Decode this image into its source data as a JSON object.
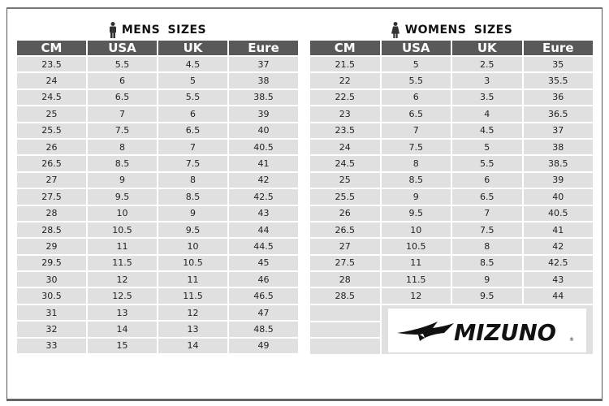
{
  "mens": {
    "title": "MENS  SIZES",
    "headers": [
      "CM",
      "USA",
      "UK",
      "Eure"
    ],
    "rows": [
      [
        "23.5",
        "5.5",
        "4.5",
        "37"
      ],
      [
        "24",
        "6",
        "5",
        "38"
      ],
      [
        "24.5",
        "6.5",
        "5.5",
        "38.5"
      ],
      [
        "25",
        "7",
        "6",
        "39"
      ],
      [
        "25.5",
        "7.5",
        "6.5",
        "40"
      ],
      [
        "26",
        "8",
        "7",
        "40.5"
      ],
      [
        "26.5",
        "8.5",
        "7.5",
        "41"
      ],
      [
        "27",
        "9",
        "8",
        "42"
      ],
      [
        "27.5",
        "9.5",
        "8.5",
        "42.5"
      ],
      [
        "28",
        "10",
        "9",
        "43"
      ],
      [
        "28.5",
        "10.5",
        "9.5",
        "44"
      ],
      [
        "29",
        "11",
        "10",
        "44.5"
      ],
      [
        "29.5",
        "11.5",
        "10.5",
        "45"
      ],
      [
        "30",
        "12",
        "11",
        "46"
      ],
      [
        "30.5",
        "12.5",
        "11.5",
        "46.5"
      ],
      [
        "31",
        "13",
        "12",
        "47"
      ],
      [
        "32",
        "14",
        "13",
        "48.5"
      ],
      [
        "33",
        "15",
        "14",
        "49"
      ]
    ]
  },
  "womens": {
    "title": "WOMENS  SIZES",
    "headers": [
      "CM",
      "USA",
      "UK",
      "Eure"
    ],
    "rows": [
      [
        "21.5",
        "5",
        "2.5",
        "35"
      ],
      [
        "22",
        "5.5",
        "3",
        "35.5"
      ],
      [
        "22.5",
        "6",
        "3.5",
        "36"
      ],
      [
        "23",
        "6.5",
        "4",
        "36.5"
      ],
      [
        "23.5",
        "7",
        "4.5",
        "37"
      ],
      [
        "24",
        "7.5",
        "5",
        "38"
      ],
      [
        "24.5",
        "8",
        "5.5",
        "38.5"
      ],
      [
        "25",
        "8.5",
        "6",
        "39"
      ],
      [
        "25.5",
        "9",
        "6.5",
        "40"
      ],
      [
        "26",
        "9.5",
        "7",
        "40.5"
      ],
      [
        "26.5",
        "10",
        "7.5",
        "41"
      ],
      [
        "27",
        "10.5",
        "8",
        "42"
      ],
      [
        "27.5",
        "11",
        "8.5",
        "42.5"
      ],
      [
        "28",
        "11.5",
        "9",
        "43"
      ],
      [
        "28.5",
        "12",
        "9.5",
        "44"
      ]
    ]
  },
  "brand": {
    "logo": "MIZUNO"
  },
  "colors": {
    "header_bg": "#595959",
    "cell_bg": "#e0e0e0"
  }
}
